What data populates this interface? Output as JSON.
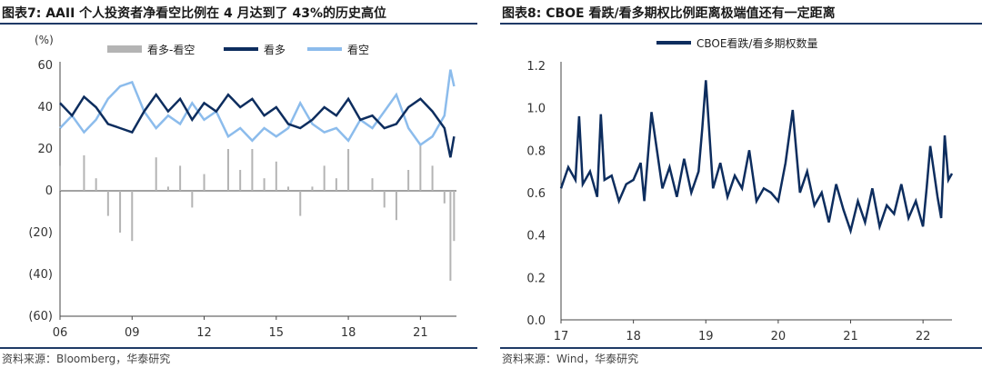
{
  "left": {
    "title": "图表7:  AAII 个人投资者净看空比例在 4 月达到了 43%的历史高位",
    "source": "资料来源：Bloomberg，华泰研究",
    "unit_label": "(%)",
    "legend": [
      "看多-看空",
      "看多",
      "看空"
    ],
    "colors": {
      "bull": "#0d2d5e",
      "bear": "#8cbcec",
      "spread": "#b4b4b4"
    },
    "chart_data": {
      "type": "line",
      "x_ticks": [
        "06",
        "09",
        "12",
        "15",
        "18",
        "21"
      ],
      "y_ticks": [
        "60",
        "40",
        "20",
        "0",
        "(20)",
        "(40)",
        "(60)"
      ],
      "ylim": [
        -60,
        60
      ],
      "x_range": [
        2006.0,
        2022.5
      ],
      "series": [
        {
          "name": "看多",
          "x": [
            2006.0,
            2006.5,
            2007.0,
            2007.5,
            2008.0,
            2008.5,
            2009.0,
            2009.5,
            2010.0,
            2010.5,
            2011.0,
            2011.5,
            2012.0,
            2012.5,
            2013.0,
            2013.5,
            2014.0,
            2014.5,
            2015.0,
            2015.5,
            2016.0,
            2016.5,
            2017.0,
            2017.5,
            2018.0,
            2018.5,
            2019.0,
            2019.5,
            2020.0,
            2020.5,
            2021.0,
            2021.5,
            2022.0,
            2022.25,
            2022.4
          ],
          "values": [
            42,
            36,
            45,
            40,
            32,
            30,
            28,
            38,
            46,
            38,
            44,
            34,
            42,
            38,
            46,
            40,
            44,
            36,
            40,
            32,
            30,
            34,
            40,
            36,
            44,
            34,
            36,
            30,
            32,
            40,
            44,
            38,
            30,
            16,
            26
          ]
        },
        {
          "name": "看空",
          "x": [
            2006.0,
            2006.5,
            2007.0,
            2007.5,
            2008.0,
            2008.5,
            2009.0,
            2009.5,
            2010.0,
            2010.5,
            2011.0,
            2011.5,
            2012.0,
            2012.5,
            2013.0,
            2013.5,
            2014.0,
            2014.5,
            2015.0,
            2015.5,
            2016.0,
            2016.5,
            2017.0,
            2017.5,
            2018.0,
            2018.5,
            2019.0,
            2019.5,
            2020.0,
            2020.5,
            2021.0,
            2021.5,
            2022.0,
            2022.25,
            2022.4
          ],
          "values": [
            30,
            36,
            28,
            34,
            44,
            50,
            52,
            38,
            30,
            36,
            32,
            42,
            34,
            38,
            26,
            30,
            24,
            30,
            26,
            30,
            42,
            32,
            28,
            30,
            24,
            34,
            30,
            38,
            46,
            30,
            22,
            26,
            36,
            58,
            50
          ]
        },
        {
          "name": "看多-看空",
          "x": [
            2006.0,
            2006.5,
            2007.0,
            2007.5,
            2008.0,
            2008.5,
            2009.0,
            2009.5,
            2010.0,
            2010.5,
            2011.0,
            2011.5,
            2012.0,
            2012.5,
            2013.0,
            2013.5,
            2014.0,
            2014.5,
            2015.0,
            2015.5,
            2016.0,
            2016.5,
            2017.0,
            2017.5,
            2018.0,
            2018.5,
            2019.0,
            2019.5,
            2020.0,
            2020.5,
            2021.0,
            2021.5,
            2022.0,
            2022.25,
            2022.4
          ],
          "values": [
            12,
            0,
            17,
            6,
            -12,
            -20,
            -24,
            0,
            16,
            2,
            12,
            -8,
            8,
            0,
            20,
            10,
            20,
            6,
            14,
            2,
            -12,
            2,
            12,
            6,
            20,
            0,
            6,
            -8,
            -14,
            10,
            22,
            12,
            -6,
            -43,
            -24
          ]
        }
      ]
    }
  },
  "right": {
    "title": "图表8:  CBOE 看跌/看多期权比例距离极端值还有一定距离",
    "source": "资料来源：Wind，华泰研究",
    "legend": [
      "CBOE看跌/看多期权数量"
    ],
    "colors": {
      "line": "#0d2d5e"
    },
    "chart_data": {
      "type": "line",
      "x_ticks": [
        "17",
        "18",
        "19",
        "20",
        "21",
        "22"
      ],
      "y_ticks": [
        "1.2",
        "1.0",
        "0.8",
        "0.6",
        "0.4",
        "0.2",
        "0.0"
      ],
      "ylim": [
        0.0,
        1.2
      ],
      "x_range": [
        2017.0,
        2022.4
      ],
      "series": [
        {
          "name": "CBOE看跌/看多期权数量",
          "x": [
            2017.0,
            2017.1,
            2017.2,
            2017.25,
            2017.3,
            2017.4,
            2017.5,
            2017.55,
            2017.6,
            2017.7,
            2017.8,
            2017.9,
            2018.0,
            2018.1,
            2018.15,
            2018.25,
            2018.4,
            2018.5,
            2018.6,
            2018.7,
            2018.8,
            2018.9,
            2018.95,
            2019.0,
            2019.1,
            2019.2,
            2019.3,
            2019.4,
            2019.5,
            2019.6,
            2019.7,
            2019.8,
            2019.9,
            2020.0,
            2020.1,
            2020.2,
            2020.3,
            2020.4,
            2020.5,
            2020.6,
            2020.7,
            2020.8,
            2020.9,
            2021.0,
            2021.1,
            2021.2,
            2021.3,
            2021.4,
            2021.5,
            2021.6,
            2021.7,
            2021.8,
            2021.9,
            2022.0,
            2022.05,
            2022.1,
            2022.2,
            2022.25,
            2022.3,
            2022.35,
            2022.4
          ],
          "values": [
            0.62,
            0.72,
            0.66,
            0.96,
            0.64,
            0.7,
            0.58,
            0.97,
            0.66,
            0.68,
            0.56,
            0.64,
            0.66,
            0.74,
            0.56,
            0.98,
            0.62,
            0.72,
            0.58,
            0.76,
            0.6,
            0.7,
            0.9,
            1.13,
            0.62,
            0.74,
            0.58,
            0.68,
            0.62,
            0.8,
            0.56,
            0.62,
            0.6,
            0.56,
            0.74,
            0.99,
            0.6,
            0.7,
            0.54,
            0.6,
            0.46,
            0.64,
            0.52,
            0.42,
            0.56,
            0.46,
            0.62,
            0.44,
            0.54,
            0.5,
            0.64,
            0.48,
            0.56,
            0.44,
            0.62,
            0.82,
            0.58,
            0.48,
            0.87,
            0.66,
            0.69
          ]
        }
      ]
    }
  }
}
